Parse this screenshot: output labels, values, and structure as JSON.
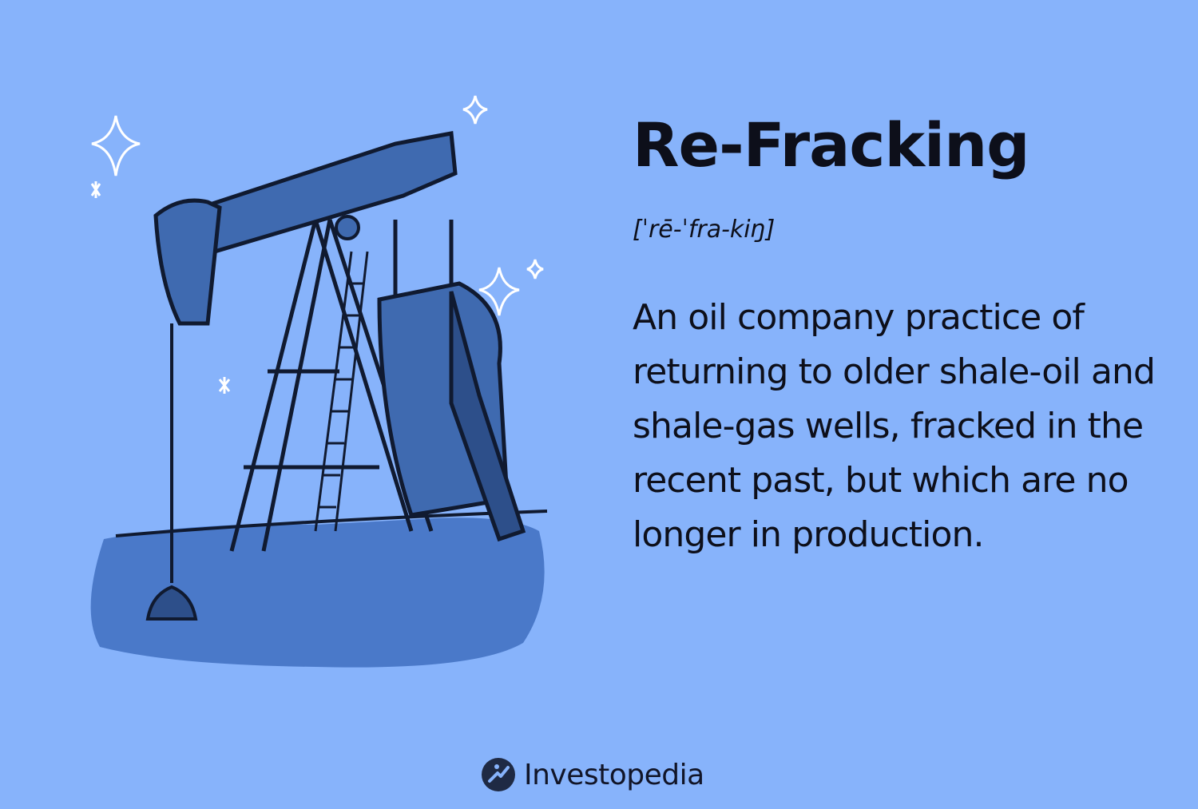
{
  "card": {
    "term": "Re-Fracking",
    "pronunciation": "[ˈrē-ˈfra-kiŋ]",
    "definition": "An oil company practice of returning to older shale-oil and shale-gas wells, fracked in the recent past, but which are no longer in production."
  },
  "brand": {
    "name": "Investopedia",
    "logo_icon": "investopedia-logo-icon"
  },
  "illustration": {
    "subject": "oil-pumpjack"
  },
  "colors": {
    "background": "#87b3fb",
    "text": "#0d0f1a",
    "ink": "#101a30",
    "machine_fill": "#3f6ab0",
    "ground": "#4a79c9"
  }
}
